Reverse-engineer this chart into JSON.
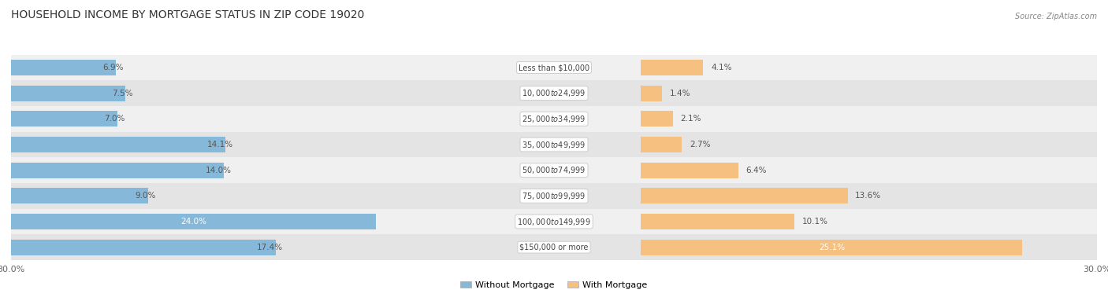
{
  "title": "HOUSEHOLD INCOME BY MORTGAGE STATUS IN ZIP CODE 19020",
  "source": "Source: ZipAtlas.com",
  "categories": [
    "Less than $10,000",
    "$10,000 to $24,999",
    "$25,000 to $34,999",
    "$35,000 to $49,999",
    "$50,000 to $74,999",
    "$75,000 to $99,999",
    "$100,000 to $149,999",
    "$150,000 or more"
  ],
  "without_mortgage": [
    6.9,
    7.5,
    7.0,
    14.1,
    14.0,
    9.0,
    24.0,
    17.4
  ],
  "with_mortgage": [
    4.1,
    1.4,
    2.1,
    2.7,
    6.4,
    13.6,
    10.1,
    25.1
  ],
  "color_without": "#85b8d9",
  "color_with": "#f5c080",
  "bg_colors": [
    "#f0f0f0",
    "#e4e4e4"
  ],
  "xlim": 30.0,
  "label_threshold": 18.0,
  "legend_labels": [
    "Without Mortgage",
    "With Mortgage"
  ],
  "figsize": [
    14.06,
    3.78
  ],
  "dpi": 100,
  "title_fontsize": 10,
  "label_fontsize": 7.5,
  "cat_fontsize": 7.0,
  "tick_fontsize": 8.0
}
